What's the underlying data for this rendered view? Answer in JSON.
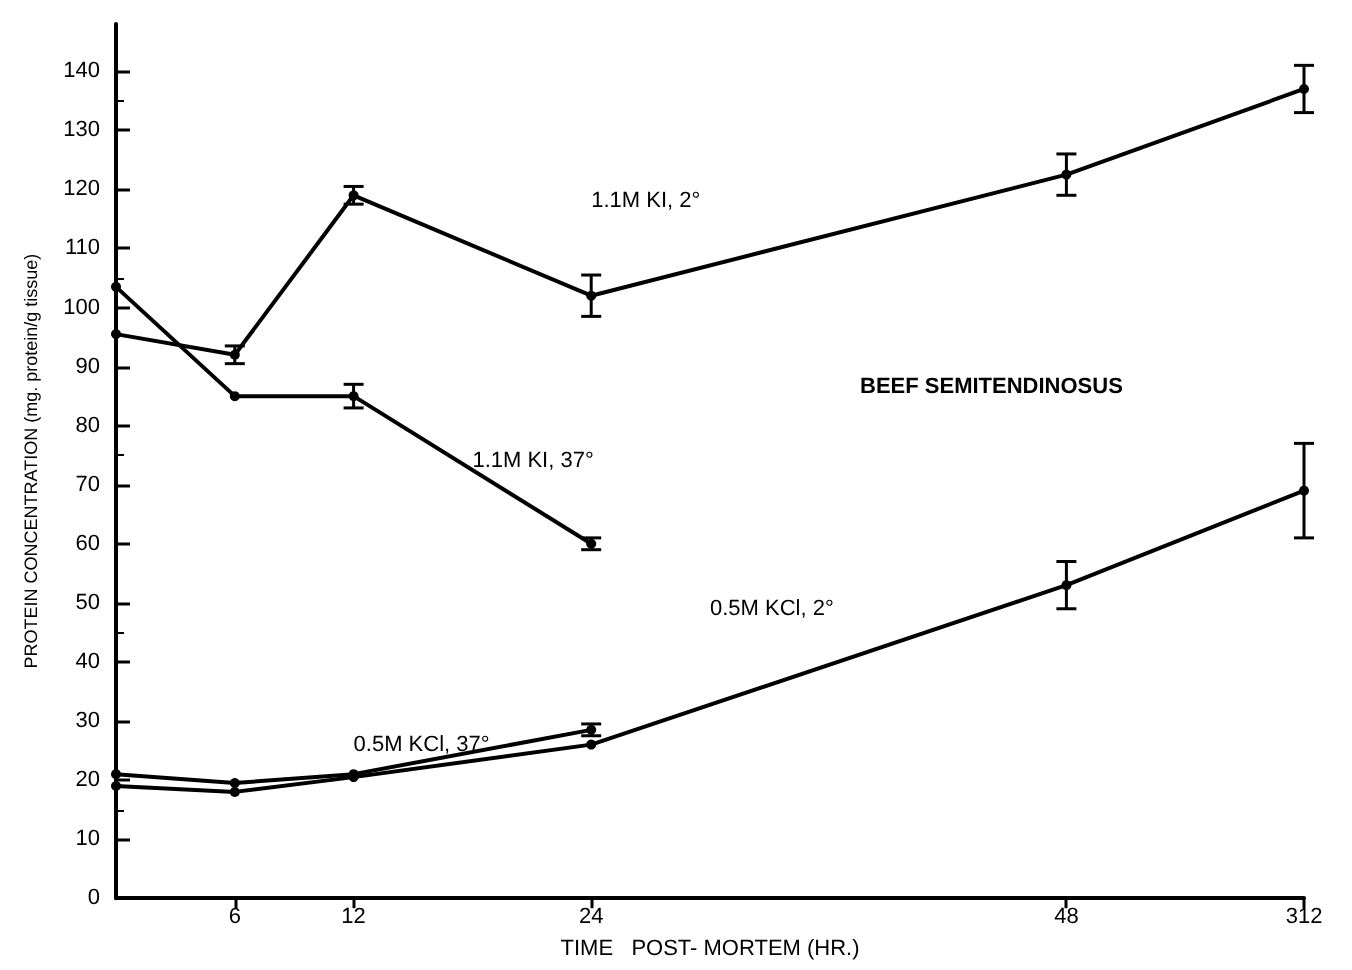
{
  "chart_data": {
    "type": "line",
    "title": "BEEF SEMITENDINOSUS",
    "xlabel": "TIME   POST- MORTEM (HR.)",
    "ylabel": "PROTEIN CONCENTRATION (mg. protein/g tissue)",
    "categories": [
      null,
      "6",
      "12",
      null,
      "24",
      null,
      null,
      null,
      "48",
      null,
      "312"
    ],
    "series": [
      {
        "name": "1.1M KI, 2°",
        "color": "#000000",
        "values": [
          95.5,
          92,
          119,
          null,
          102,
          null,
          null,
          null,
          122.5,
          null,
          137
        ],
        "errors": [
          null,
          1.5,
          1.5,
          null,
          3.5,
          null,
          null,
          null,
          3.5,
          null,
          4
        ]
      },
      {
        "name": "1.1M KI, 37°",
        "color": "#000000",
        "values": [
          103.5,
          85,
          85,
          null,
          60,
          null,
          null,
          null,
          null,
          null,
          null
        ],
        "errors": [
          null,
          null,
          2,
          null,
          1,
          null,
          null,
          null,
          null,
          null,
          null
        ]
      },
      {
        "name": "0.5M KCl, 2°",
        "color": "#000000",
        "values": [
          19,
          18,
          20.5,
          null,
          26,
          null,
          null,
          null,
          53,
          null,
          69
        ],
        "errors": [
          null,
          null,
          null,
          null,
          null,
          null,
          null,
          null,
          4,
          null,
          8
        ]
      },
      {
        "name": "0.5M KCl, 37°",
        "color": "#000000",
        "values": [
          21,
          19.5,
          21,
          null,
          28.5,
          null,
          null,
          null,
          null,
          null,
          null
        ],
        "errors": [
          null,
          null,
          null,
          null,
          1,
          null,
          null,
          null,
          null,
          null,
          null
        ]
      }
    ],
    "ylim": [
      0,
      148
    ],
    "yticks": [
      0,
      10,
      20,
      30,
      40,
      50,
      60,
      70,
      80,
      90,
      100,
      110,
      120,
      130,
      140
    ],
    "grid": false,
    "legend": false,
    "marker": "circle",
    "line_style": "solid"
  }
}
